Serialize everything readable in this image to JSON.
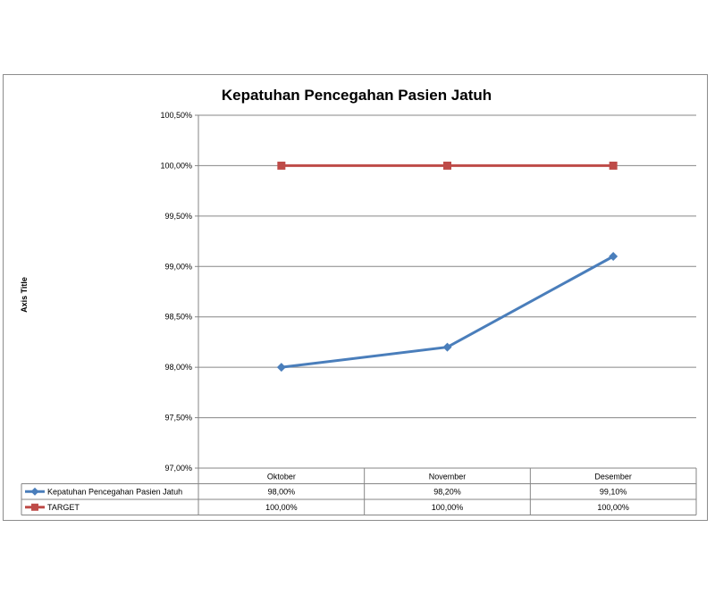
{
  "chart_data": {
    "type": "line",
    "title": "Kepatuhan Pencegahan Pasien Jatuh",
    "xlabel": "",
    "ylabel": "Axis Title",
    "categories": [
      "Oktober",
      "November",
      "Desember"
    ],
    "ylim": [
      97.0,
      100.5
    ],
    "y_ticks": [
      "100,50%",
      "100,00%",
      "99,50%",
      "99,00%",
      "98,50%",
      "98,00%",
      "97,50%",
      "97,00%"
    ],
    "y_tick_values": [
      100.5,
      100.0,
      99.5,
      99.0,
      98.5,
      98.0,
      97.5,
      97.0
    ],
    "grid": true,
    "legend": "data-table",
    "series": [
      {
        "name": "Kepatuhan Pencegahan Pasien Jatuh",
        "values": [
          98.0,
          98.2,
          99.1
        ],
        "labels": [
          "98,00%",
          "98,20%",
          "99,10%"
        ],
        "color": "#4a7ebb",
        "marker": "diamond"
      },
      {
        "name": "TARGET",
        "values": [
          100.0,
          100.0,
          100.0
        ],
        "labels": [
          "100,00%",
          "100,00%",
          "100,00%"
        ],
        "color": "#be4b48",
        "marker": "square"
      }
    ]
  }
}
